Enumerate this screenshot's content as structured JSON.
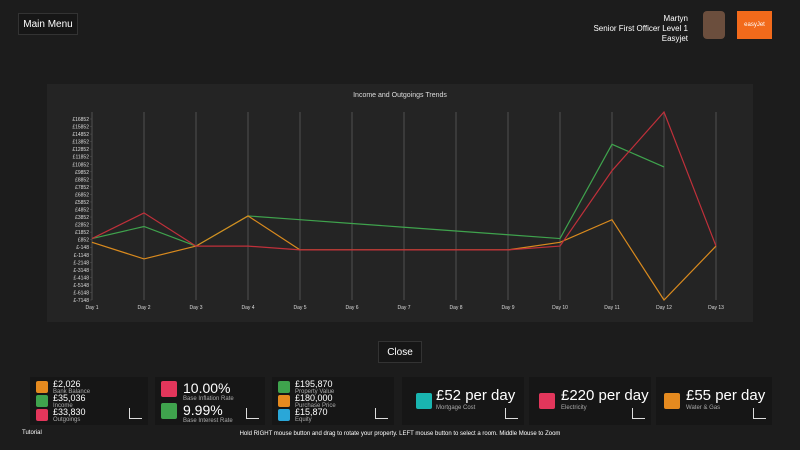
{
  "header": {
    "menu_button": "Main Menu",
    "name": "Martyn",
    "rank": "Senior First Officer Level 1",
    "airline": "Easyjet",
    "logo": "easyJet"
  },
  "chart_data": {
    "type": "line",
    "title": "Income and Outgoings Trends",
    "categories": [
      "Day 1",
      "Day 2",
      "Day 3",
      "Day 4",
      "Day 5",
      "Day 6",
      "Day 7",
      "Day 8",
      "Day 9",
      "Day 10",
      "Day 11",
      "Day 12",
      "Day 13"
    ],
    "series": [
      {
        "color": "#3fa34d",
        "values": [
          1000,
          2600,
          0,
          4000,
          3500,
          3000,
          2500,
          2000,
          1500,
          1000,
          13500,
          10500,
          null
        ]
      },
      {
        "color": "#d98a1e",
        "values": [
          500,
          -1700,
          0,
          4000,
          -500,
          -500,
          -500,
          -500,
          -500,
          500,
          3500,
          -7148,
          0
        ]
      },
      {
        "color": "#c0303a",
        "values": [
          1000,
          4400,
          0,
          0,
          -500,
          -500,
          -500,
          -500,
          -500,
          0,
          10000,
          17781,
          0
        ]
      }
    ],
    "ylim": [
      -7148,
      17781
    ],
    "yticks": [
      {
        "value": 16852,
        "label": "£16852"
      },
      {
        "value": 15852,
        "label": "£15852"
      },
      {
        "value": 14852,
        "label": "£14852"
      },
      {
        "value": 13852,
        "label": "£13852"
      },
      {
        "value": 12852,
        "label": "£12852"
      },
      {
        "value": 11852,
        "label": "£11852"
      },
      {
        "value": 10852,
        "label": "£10852"
      },
      {
        "value": 9852,
        "label": "£9852"
      },
      {
        "value": 8852,
        "label": "£8852"
      },
      {
        "value": 7852,
        "label": "£7852"
      },
      {
        "value": 6852,
        "label": "£6852"
      },
      {
        "value": 5852,
        "label": "£5852"
      },
      {
        "value": 4852,
        "label": "£4852"
      },
      {
        "value": 3852,
        "label": "£3852"
      },
      {
        "value": 2852,
        "label": "£2852"
      },
      {
        "value": 1852,
        "label": "£1852"
      },
      {
        "value": 852,
        "label": "£852"
      },
      {
        "value": -148,
        "label": "£-148"
      },
      {
        "value": -1148,
        "label": "£-1148"
      },
      {
        "value": -2148,
        "label": "£-2148"
      },
      {
        "value": -3148,
        "label": "£-3148"
      },
      {
        "value": -4148,
        "label": "£-4148"
      },
      {
        "value": -5148,
        "label": "£-5148"
      },
      {
        "value": -6148,
        "label": "£-6148"
      },
      {
        "value": -7148,
        "label": "£-7148"
      }
    ],
    "grid": true
  },
  "close_button": "Close",
  "finance": {
    "balance": "£2,026",
    "balance_label": "Bank Balance",
    "income": "£35,036",
    "income_label": "Income",
    "outgoings": "£33,830",
    "outgoings_label": "Outgoings"
  },
  "rates": {
    "inflation": "10.00%",
    "inflation_label": "Base Inflation Rate",
    "interest": "9.99%",
    "interest_label": "Base Interest Rate"
  },
  "property": {
    "value": "£195,870",
    "value_label": "Property Value",
    "price": "£180,000",
    "price_label": "Purchase Price",
    "equity": "£15,870",
    "equity_label": "Equity"
  },
  "costs": [
    {
      "amount": "£52 per day",
      "label": "Mortgage Cost"
    },
    {
      "amount": "£220 per day",
      "label": "Electricity"
    },
    {
      "amount": "£55 per day",
      "label": "Water & Gas"
    }
  ],
  "footer": {
    "tutorial": "Tutorial",
    "hint": "Hold RIGHT mouse button and drag to rotate your property. LEFT mouse button to select a room. Middle Mouse to Zoom"
  }
}
